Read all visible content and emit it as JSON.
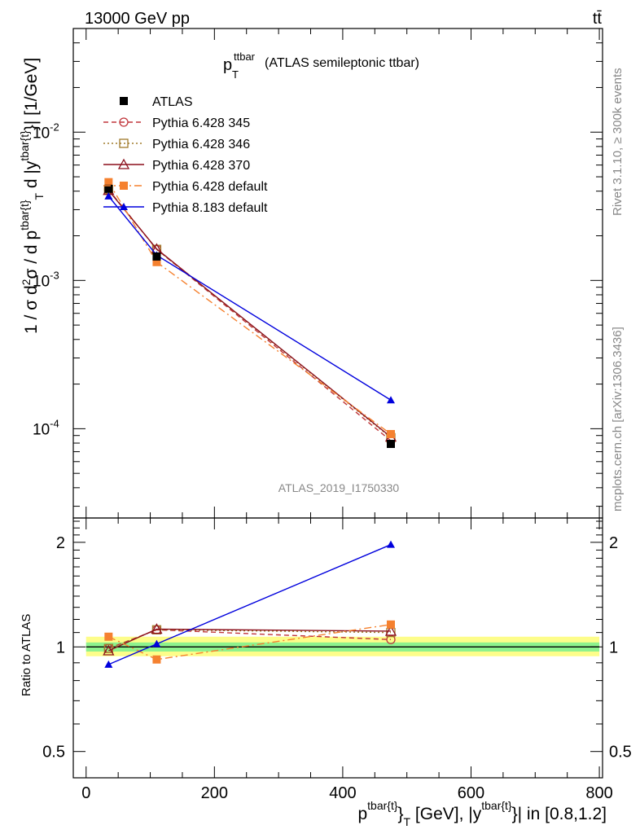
{
  "header": {
    "energy_label": "13000 GeV pp",
    "process_label": "tt̄"
  },
  "side_labels": {
    "rivet": "Rivet 3.1.10, ≥ 300k events",
    "mcplots": "mcplots.cern.ch [arXiv:1306.3436]"
  },
  "colors": {
    "atlas": "#000000",
    "p345": "#c0353a",
    "p346": "#a07b2c",
    "p370": "#8b0f1c",
    "p6def": "#f5812f",
    "p8def": "#0000dd",
    "band_inner": "#8df28d",
    "band_outer": "#fdfd8a"
  },
  "chart_data": [
    {
      "type": "line",
      "panel": "main",
      "title": {
        "main": "p",
        "sub": "T",
        "sup": "ttbar",
        "suffix": "(ATLAS semileptonic ttbar)"
      },
      "ylabel": "1 / σ d²σ / d p^{tbar{t}}_T d |y^{tbar{t}}| [1/GeV]",
      "yscale": "log",
      "xlim": [
        -20,
        805
      ],
      "ylim": [
        2.5e-05,
        0.05
      ],
      "y_ticks": [
        {
          "value": 0.01,
          "base": "10",
          "exp": "-2"
        },
        {
          "value": 0.001,
          "base": "10",
          "exp": "-3"
        },
        {
          "value": 0.0001,
          "base": "10",
          "exp": "-4"
        }
      ],
      "watermark": "ATLAS_2019_I1750330",
      "x": [
        35,
        110,
        475
      ],
      "series": [
        {
          "name": "ATLAS",
          "key": "atlas",
          "values": [
            0.00415,
            0.00145,
            7.9e-05
          ],
          "marker": "square-filled",
          "line": "none"
        },
        {
          "name": "Pythia 6.428 345",
          "key": "p345",
          "values": [
            0.0041,
            0.00162,
            8.3e-05
          ],
          "marker": "circle-open",
          "line": "dashed"
        },
        {
          "name": "Pythia 6.428 346",
          "key": "p346",
          "values": [
            0.0041,
            0.00162,
            8.7e-05
          ],
          "marker": "square-open",
          "line": "dotted"
        },
        {
          "name": "Pythia 6.428 370",
          "key": "p370",
          "values": [
            0.00405,
            0.00163,
            8.8e-05
          ],
          "marker": "triangle-open",
          "line": "solid"
        },
        {
          "name": "Pythia 6.428 default",
          "key": "p6def",
          "values": [
            0.0046,
            0.00133,
            9.2e-05
          ],
          "marker": "square-filled",
          "line": "dashdot"
        },
        {
          "name": "Pythia 8.183 default",
          "key": "p8def",
          "values": [
            0.0037,
            0.00148,
            0.000156
          ],
          "marker": "triangle-filled",
          "line": "solid"
        }
      ]
    },
    {
      "type": "line",
      "panel": "ratio",
      "ylabel": "Ratio to ATLAS",
      "yscale": "log",
      "xlabel": "p^{tbar{t}}_T [GeV], |y^{tbar{t}}| in [0.8,1.2]",
      "xlim": [
        -20,
        805
      ],
      "ylim": [
        0.42,
        2.35
      ],
      "x_ticks": [
        0,
        200,
        400,
        600,
        800
      ],
      "y_ticks": [
        {
          "value": 0.5,
          "label": "0.5"
        },
        {
          "value": 1,
          "label": "1"
        },
        {
          "value": 2,
          "label": "2"
        }
      ],
      "band": {
        "x_range": [
          0,
          800
        ],
        "inner": [
          0.97,
          1.03
        ],
        "outer": [
          0.94,
          1.07
        ]
      },
      "x": [
        35,
        110,
        475
      ],
      "series": [
        {
          "name": "Pythia 6.428 345",
          "key": "p345",
          "values": [
            0.99,
            1.12,
            1.05
          ]
        },
        {
          "name": "Pythia 6.428 346",
          "key": "p346",
          "values": [
            0.99,
            1.12,
            1.1
          ]
        },
        {
          "name": "Pythia 6.428 370",
          "key": "p370",
          "values": [
            0.975,
            1.125,
            1.11
          ]
        },
        {
          "name": "Pythia 6.428 default",
          "key": "p6def",
          "values": [
            1.07,
            0.92,
            1.16
          ]
        },
        {
          "name": "Pythia 8.183 default",
          "key": "p8def",
          "values": [
            0.89,
            1.02,
            1.97
          ]
        }
      ]
    }
  ]
}
